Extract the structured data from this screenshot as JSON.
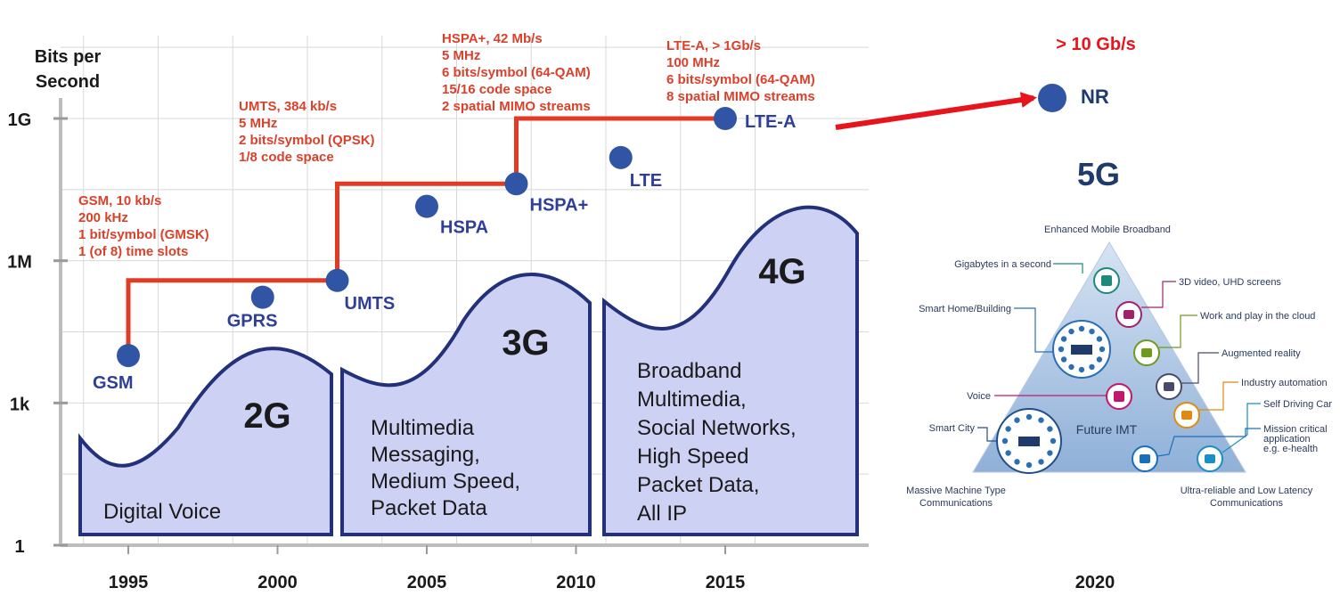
{
  "chart_data": {
    "type": "scatter",
    "y_axis_title": [
      "Bits per",
      "Second"
    ],
    "y_scale": "log",
    "y_ticks": [
      {
        "label": "1G",
        "value": 1000000000
      },
      {
        "label": "1M",
        "value": 1000000
      },
      {
        "label": "1k",
        "value": 1000
      },
      {
        "label": "1",
        "value": 1
      }
    ],
    "x_ticks": [
      "1995",
      "2000",
      "2005",
      "2010",
      "2015"
    ],
    "xlim": [
      1993,
      2018
    ],
    "grid": true,
    "points": [
      {
        "name": "GSM",
        "year": 1995,
        "bps": 10000
      },
      {
        "name": "GPRS",
        "year": 1999.5,
        "bps": 170000
      },
      {
        "name": "UMTS",
        "year": 2002,
        "bps": 384000
      },
      {
        "name": "HSPA",
        "year": 2005,
        "bps": 14000000
      },
      {
        "name": "HSPA+",
        "year": 2008,
        "bps": 42000000
      },
      {
        "name": "LTE",
        "year": 2011.5,
        "bps": 150000000
      },
      {
        "name": "LTE-A",
        "year": 2015,
        "bps": 1000000000
      }
    ],
    "evolution_path": [
      "GSM",
      "UMTS",
      "HSPA+",
      "LTE-A"
    ],
    "generations": [
      {
        "label": "2G",
        "description": [
          "Digital Voice"
        ]
      },
      {
        "label": "3G",
        "description": [
          "Multimedia",
          "Messaging,",
          "Medium Speed,",
          "Packet Data"
        ]
      },
      {
        "label": "4G",
        "description": [
          "Broadband",
          "Multimedia,",
          "Social Networks,",
          "High Speed",
          "Packet Data,",
          "All IP"
        ]
      }
    ],
    "annotations": [
      {
        "for": "GSM",
        "lines": [
          "GSM, 10 kb/s",
          "200 kHz",
          "1 bit/symbol (GMSK)",
          "1 (of 8) time slots"
        ]
      },
      {
        "for": "UMTS",
        "lines": [
          "UMTS, 384 kb/s",
          "5 MHz",
          "2 bits/symbol (QPSK)",
          "1/8 code space"
        ]
      },
      {
        "for": "HSPA+",
        "lines": [
          "HSPA+, 42 Mb/s",
          "5 MHz",
          "6 bits/symbol (64-QAM)",
          "15/16 code space",
          "2 spatial MIMO streams"
        ]
      },
      {
        "for": "LTE-A",
        "lines": [
          "LTE-A, > 1Gb/s",
          "100 MHz",
          "6 bits/symbol (64-QAM)",
          "8 spatial MIMO streams"
        ]
      }
    ],
    "colors": {
      "path": "#e23b24",
      "spec_text": "#d9412b",
      "point": "#2f55a4",
      "label": "#2f3f97",
      "band_fill": "#cdd1f3",
      "band_stroke": "#23307a"
    }
  },
  "future": {
    "rate": "> 10 Gb/s",
    "point_label": "NR",
    "generation": "5G",
    "year": "2020",
    "rate_color": "#e8141c",
    "title_color": "#1f3b6b"
  },
  "imt_diagram": {
    "title": "Enhanced Mobile Broadband",
    "center": "Future IMT",
    "bottom_left": [
      "Massive Machine Type",
      "Communications"
    ],
    "bottom_right": [
      "Ultra-reliable and Low Latency",
      "Communications"
    ],
    "left_items": [
      "Gigabytes in a second",
      "Smart Home/Building",
      "Voice",
      "Smart City"
    ],
    "right_items": [
      {
        "label": [
          "3D video, UHD screens"
        ],
        "color": "#a3206b",
        "icon": "3d-screen-icon"
      },
      {
        "label": [
          "Work and play in the cloud"
        ],
        "color": "#6e9b1c",
        "icon": "gamepad-icon"
      },
      {
        "label": [
          "Augmented reality"
        ],
        "color": "#4a4a68",
        "icon": "ar-icon"
      },
      {
        "label": [
          "Industry automation"
        ],
        "color": "#e08a0f",
        "icon": "gears-icon"
      },
      {
        "label": [
          "Self Driving Car"
        ],
        "color": "#1b8ec2",
        "icon": "car-icon"
      },
      {
        "label": [
          "Mission critical",
          "application",
          "e.g. e-health"
        ],
        "color": "#1b6fb8",
        "icon": "phone-icon"
      }
    ],
    "left_colors": [
      "#1b8a78",
      "#2a6fb3",
      "#c2186b",
      "#1e4f8a"
    ]
  }
}
